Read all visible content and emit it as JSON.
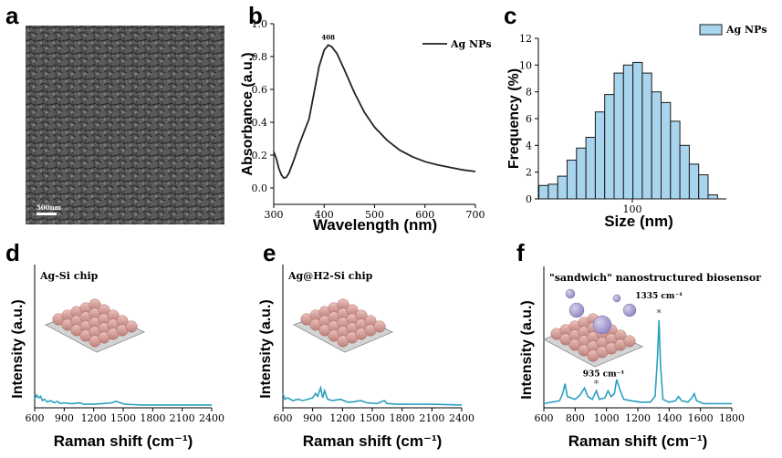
{
  "figure": {
    "panel_labels": [
      "a",
      "b",
      "c",
      "d",
      "e",
      "f"
    ]
  },
  "chart_data": [
    {
      "panel": "a",
      "type": "image",
      "scale_bar": "500nm"
    },
    {
      "panel": "b",
      "type": "line",
      "xlabel": "Wavelength (nm)",
      "ylabel": "Absorbance (a.u.)",
      "xlim": [
        300,
        700
      ],
      "ylim": [
        -0.1,
        1.0
      ],
      "xticks": [
        300,
        400,
        500,
        600,
        700
      ],
      "yticks": [
        0.0,
        0.2,
        0.4,
        0.6,
        0.8,
        1.0
      ],
      "legend": "top-right",
      "peak_label": "408",
      "series": [
        {
          "name": "Ag NPs",
          "color": "#222222",
          "points": [
            [
              300,
              0.22
            ],
            [
              305,
              0.18
            ],
            [
              310,
              0.12
            ],
            [
              315,
              0.08
            ],
            [
              320,
              0.06
            ],
            [
              325,
              0.065
            ],
            [
              330,
              0.09
            ],
            [
              340,
              0.17
            ],
            [
              350,
              0.26
            ],
            [
              360,
              0.34
            ],
            [
              370,
              0.42
            ],
            [
              380,
              0.58
            ],
            [
              390,
              0.74
            ],
            [
              400,
              0.84
            ],
            [
              408,
              0.87
            ],
            [
              415,
              0.86
            ],
            [
              425,
              0.82
            ],
            [
              440,
              0.72
            ],
            [
              460,
              0.58
            ],
            [
              480,
              0.46
            ],
            [
              500,
              0.37
            ],
            [
              525,
              0.29
            ],
            [
              550,
              0.23
            ],
            [
              575,
              0.19
            ],
            [
              600,
              0.16
            ],
            [
              625,
              0.14
            ],
            [
              650,
              0.125
            ],
            [
              675,
              0.11
            ],
            [
              700,
              0.1
            ]
          ]
        }
      ]
    },
    {
      "panel": "c",
      "type": "bar",
      "xlabel": "Size (nm)",
      "ylabel": "Frequency (%)",
      "xlim": [
        10,
        190
      ],
      "ylim": [
        0,
        12
      ],
      "xticks": [
        100
      ],
      "yticks": [
        0,
        2,
        4,
        6,
        8,
        10,
        12
      ],
      "bar_color": "#a8d4ee",
      "legend": "top-right",
      "series_name": "Ag NPs",
      "bin_width": 9,
      "bin_centers": [
        15,
        24,
        33,
        42,
        51,
        60,
        69,
        78,
        87,
        96,
        105,
        114,
        123,
        132,
        141,
        150,
        159,
        168,
        177
      ],
      "values": [
        1.0,
        1.1,
        1.7,
        2.9,
        3.8,
        4.6,
        6.5,
        7.8,
        9.4,
        10.0,
        10.2,
        9.4,
        8.0,
        7.2,
        5.8,
        4.0,
        2.6,
        1.8,
        0.3
      ]
    },
    {
      "panel": "d",
      "type": "line",
      "inset_title": "Ag-Si chip",
      "xlabel": "Raman shift (cm⁻¹)",
      "ylabel": "Intensity (a.u.)",
      "xlim": [
        600,
        2400
      ],
      "xticks": [
        600,
        900,
        1200,
        1500,
        1800,
        2100,
        2400
      ],
      "ylim": [
        0,
        1
      ],
      "series": [
        {
          "color": "#2aa0c0",
          "points": [
            [
              600,
              0.06
            ],
            [
              620,
              0.09
            ],
            [
              640,
              0.07
            ],
            [
              660,
              0.08
            ],
            [
              680,
              0.05
            ],
            [
              700,
              0.06
            ],
            [
              730,
              0.04
            ],
            [
              760,
              0.05
            ],
            [
              800,
              0.035
            ],
            [
              830,
              0.045
            ],
            [
              860,
              0.03
            ],
            [
              900,
              0.035
            ],
            [
              950,
              0.03
            ],
            [
              1000,
              0.03
            ],
            [
              1050,
              0.035
            ],
            [
              1100,
              0.025
            ],
            [
              1200,
              0.025
            ],
            [
              1300,
              0.03
            ],
            [
              1380,
              0.035
            ],
            [
              1430,
              0.045
            ],
            [
              1470,
              0.035
            ],
            [
              1520,
              0.025
            ],
            [
              1600,
              0.022
            ],
            [
              1700,
              0.02
            ],
            [
              1800,
              0.02
            ],
            [
              2000,
              0.02
            ],
            [
              2200,
              0.02
            ],
            [
              2400,
              0.02
            ]
          ]
        }
      ]
    },
    {
      "panel": "e",
      "type": "line",
      "inset_title": "Ag@H2-Si chip",
      "xlabel": "Raman shift (cm⁻¹)",
      "ylabel": "Intensity (a.u.)",
      "xlim": [
        600,
        2400
      ],
      "xticks": [
        600,
        900,
        1200,
        1500,
        1800,
        2100,
        2400
      ],
      "ylim": [
        0,
        1
      ],
      "series": [
        {
          "color": "#2aa0c0",
          "points": [
            [
              600,
              0.1
            ],
            [
              620,
              0.06
            ],
            [
              650,
              0.07
            ],
            [
              700,
              0.05
            ],
            [
              750,
              0.06
            ],
            [
              800,
              0.05
            ],
            [
              850,
              0.06
            ],
            [
              900,
              0.07
            ],
            [
              930,
              0.1
            ],
            [
              950,
              0.08
            ],
            [
              980,
              0.14
            ],
            [
              1000,
              0.07
            ],
            [
              1020,
              0.12
            ],
            [
              1050,
              0.06
            ],
            [
              1100,
              0.05
            ],
            [
              1180,
              0.06
            ],
            [
              1250,
              0.04
            ],
            [
              1300,
              0.04
            ],
            [
              1380,
              0.05
            ],
            [
              1450,
              0.035
            ],
            [
              1550,
              0.03
            ],
            [
              1620,
              0.05
            ],
            [
              1650,
              0.03
            ],
            [
              1750,
              0.025
            ],
            [
              1900,
              0.025
            ],
            [
              2100,
              0.025
            ],
            [
              2400,
              0.02
            ]
          ]
        }
      ]
    },
    {
      "panel": "f",
      "type": "line",
      "inset_title": "\"sandwich\" nanostructured biosensor",
      "xlabel": "Raman shift (cm⁻¹)",
      "ylabel": "Intensity (a.u.)",
      "xlim": [
        600,
        1800
      ],
      "xticks": [
        600,
        800,
        1000,
        1200,
        1400,
        1600,
        1800
      ],
      "ylim": [
        0,
        1
      ],
      "annotations": [
        {
          "text": "935 cm⁻¹",
          "x": 935
        },
        {
          "text": "1335 cm⁻¹",
          "x": 1335
        }
      ],
      "series": [
        {
          "color": "#2aa0c0",
          "points": [
            [
              600,
              0.03
            ],
            [
              650,
              0.04
            ],
            [
              700,
              0.05
            ],
            [
              720,
              0.1
            ],
            [
              735,
              0.17
            ],
            [
              750,
              0.08
            ],
            [
              800,
              0.06
            ],
            [
              830,
              0.09
            ],
            [
              860,
              0.14
            ],
            [
              880,
              0.08
            ],
            [
              910,
              0.06
            ],
            [
              935,
              0.12
            ],
            [
              955,
              0.06
            ],
            [
              990,
              0.07
            ],
            [
              1010,
              0.12
            ],
            [
              1030,
              0.08
            ],
            [
              1050,
              0.1
            ],
            [
              1065,
              0.2
            ],
            [
              1085,
              0.13
            ],
            [
              1110,
              0.06
            ],
            [
              1160,
              0.05
            ],
            [
              1220,
              0.04
            ],
            [
              1280,
              0.04
            ],
            [
              1310,
              0.08
            ],
            [
              1325,
              0.35
            ],
            [
              1335,
              0.62
            ],
            [
              1345,
              0.3
            ],
            [
              1360,
              0.06
            ],
            [
              1400,
              0.04
            ],
            [
              1440,
              0.05
            ],
            [
              1460,
              0.08
            ],
            [
              1480,
              0.05
            ],
            [
              1520,
              0.04
            ],
            [
              1545,
              0.07
            ],
            [
              1560,
              0.1
            ],
            [
              1575,
              0.05
            ],
            [
              1620,
              0.03
            ],
            [
              1700,
              0.03
            ],
            [
              1800,
              0.03
            ]
          ]
        }
      ]
    }
  ]
}
